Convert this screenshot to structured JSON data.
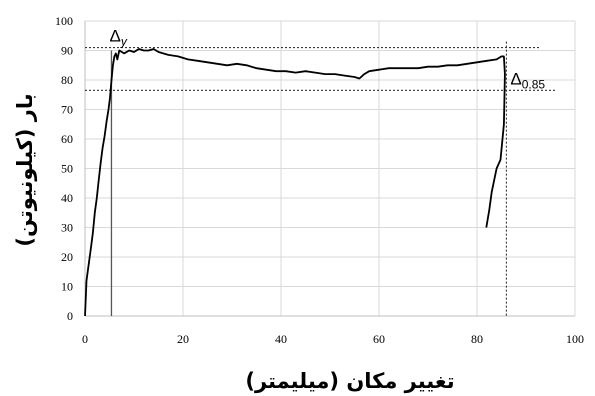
{
  "chart_data": {
    "type": "line",
    "title": "",
    "xlabel": "تغییر مکان (میلیمتر)",
    "ylabel": "بار (کیلونیوتن)",
    "xlim": [
      0,
      100
    ],
    "ylim": [
      0,
      100
    ],
    "x_ticks": [
      "0",
      "20",
      "40",
      "60",
      "80",
      "100"
    ],
    "y_ticks": [
      "0",
      "10",
      "20",
      "30",
      "40",
      "50",
      "60",
      "70",
      "80",
      "90",
      "100"
    ],
    "grid": true,
    "legend": "none",
    "series": [
      {
        "x": [
          0,
          0.3,
          0.8,
          1.2,
          1.6,
          2.0,
          2.4,
          2.8,
          3.2,
          3.6,
          4.0,
          4.4,
          4.8,
          5.1,
          5.4,
          5.7,
          6.0,
          6.3,
          6.6,
          7.0,
          8.0,
          9.0,
          10.0,
          11.0,
          12.0,
          13.0,
          14.0,
          15.0,
          17.0,
          19.0,
          21.0,
          23.0,
          25.0,
          27.0,
          29.0,
          31.0,
          33.0,
          35.0,
          37.0,
          39.0,
          41.0,
          43.0,
          45.0,
          47.0,
          49.0,
          51.0,
          53.0,
          55.0,
          56.0,
          57.0,
          58.0,
          60.0,
          62.0,
          64.0,
          66.0,
          68.0,
          70.0,
          72.0,
          74.0,
          76.0,
          78.0,
          80.0,
          82.0,
          84.0,
          85.0,
          85.5,
          85.7,
          85.5,
          84.8,
          84.0,
          83.0,
          82.5,
          81.9
        ],
        "y": [
          0,
          12,
          18,
          23,
          28,
          35,
          40,
          46,
          52,
          57,
          61,
          66,
          70,
          74,
          80,
          85,
          88,
          89,
          87,
          90,
          89,
          90,
          89.5,
          90.5,
          90,
          90,
          90.5,
          89.5,
          88.5,
          88,
          87,
          86.5,
          86,
          85.5,
          85,
          85.5,
          85,
          84,
          83.5,
          83,
          83,
          82.5,
          83,
          82.5,
          82,
          82,
          81.5,
          81,
          80.5,
          82,
          83,
          83.5,
          84,
          84,
          84,
          84,
          84.5,
          84.5,
          85,
          85,
          85.5,
          86,
          86.5,
          87,
          88,
          88,
          82,
          65,
          53,
          50,
          42,
          36,
          30
        ]
      }
    ],
    "reference_lines": {
      "horizontal": [
        91,
        76.5
      ],
      "vertical": [
        5.4,
        86
      ]
    },
    "annotations": [
      {
        "text": "Δ",
        "sub": "y",
        "x": 5.4,
        "y": 91
      },
      {
        "text": "Δ",
        "sub": "0.85",
        "x": 86,
        "y": 76.5
      }
    ]
  }
}
